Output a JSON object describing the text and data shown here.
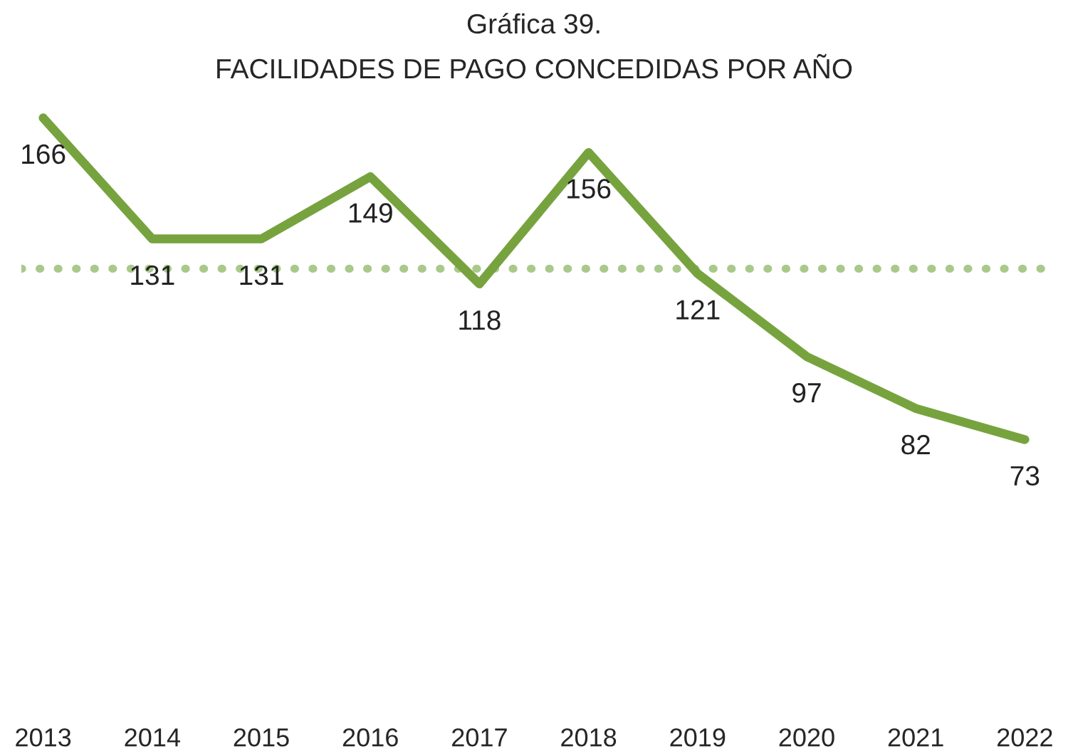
{
  "chart_data": {
    "type": "line",
    "title": "Gráfica 39.",
    "subtitle": "FACILIDADES DE PAGO CONCEDIDAS POR AÑO",
    "categories": [
      "2013",
      "2014",
      "2015",
      "2016",
      "2017",
      "2018",
      "2019",
      "2020",
      "2021",
      "2022"
    ],
    "series": [
      {
        "color": "#77a33f",
        "values": [
          166,
          131,
          131,
          149,
          118,
          156,
          121,
          97,
          82,
          73
        ]
      }
    ],
    "tick_labels": "x",
    "data_labels": true,
    "grid": false,
    "marker": "none",
    "line_style": "solid",
    "ref_lines": [
      {
        "axis": "y",
        "value": 122.4,
        "color": "#a9c98a",
        "line_style": "dotted"
      }
    ]
  }
}
